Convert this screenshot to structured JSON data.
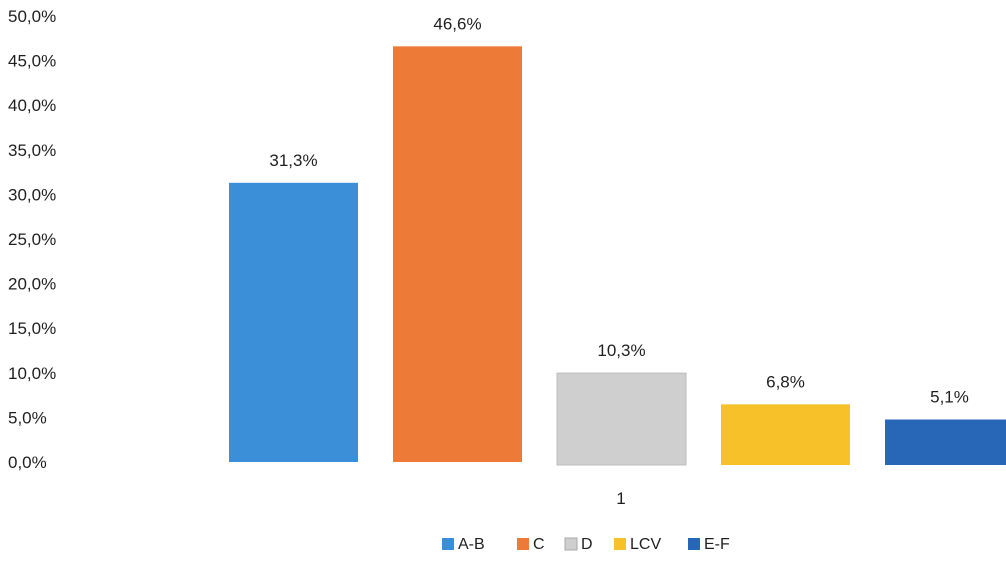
{
  "chart_data": {
    "type": "bar",
    "categories": [
      "1"
    ],
    "series": [
      {
        "name": "A-B",
        "values": [
          31.3
        ],
        "label": "31,3%",
        "color": "#3a8fd8"
      },
      {
        "name": "C",
        "values": [
          46.6
        ],
        "label": "46,6%",
        "color": "#ee7a38"
      },
      {
        "name": "D",
        "values": [
          10.3
        ],
        "label": "10,3%",
        "color": "#cfcfcf"
      },
      {
        "name": "LCV",
        "values": [
          6.8
        ],
        "label": "6,8%",
        "color": "#f7c12a"
      },
      {
        "name": "E-F",
        "values": [
          5.1
        ],
        "label": "5,1%",
        "color": "#2867b8"
      }
    ],
    "yticks": [
      "0,0%",
      "5,0%",
      "10,0%",
      "15,0%",
      "20,0%",
      "25,0%",
      "30,0%",
      "35,0%",
      "40,0%",
      "45,0%",
      "50,0%"
    ],
    "ylim": [
      0,
      50
    ],
    "grid": false,
    "legend_position": "bottom-center"
  }
}
